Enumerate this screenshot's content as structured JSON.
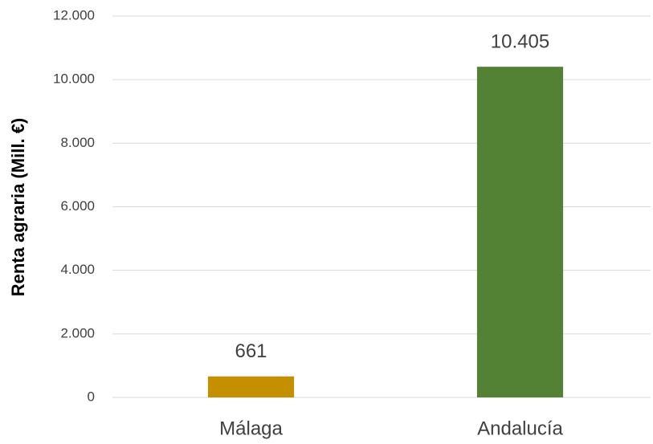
{
  "chart_data": {
    "type": "bar",
    "y_label": "Renta agraria (Mill. €)",
    "categories": [
      "Málaga",
      "Andalucía"
    ],
    "values": [
      661,
      10405
    ],
    "value_labels": [
      "661",
      "10.405"
    ],
    "colors": [
      "#c49000",
      "#548235"
    ],
    "ylim": [
      0,
      12000
    ],
    "yticks": [
      0,
      {
        "value": 2000,
        "label": "2.000"
      },
      {
        "value": 4000,
        "label": "4.000"
      },
      {
        "value": 6000,
        "label": "6.000"
      },
      {
        "value": 8000,
        "label": "8.000"
      },
      {
        "value": 10000,
        "label": "10.000"
      },
      {
        "value": 12000,
        "label": "12.000"
      }
    ],
    "grid": true
  }
}
